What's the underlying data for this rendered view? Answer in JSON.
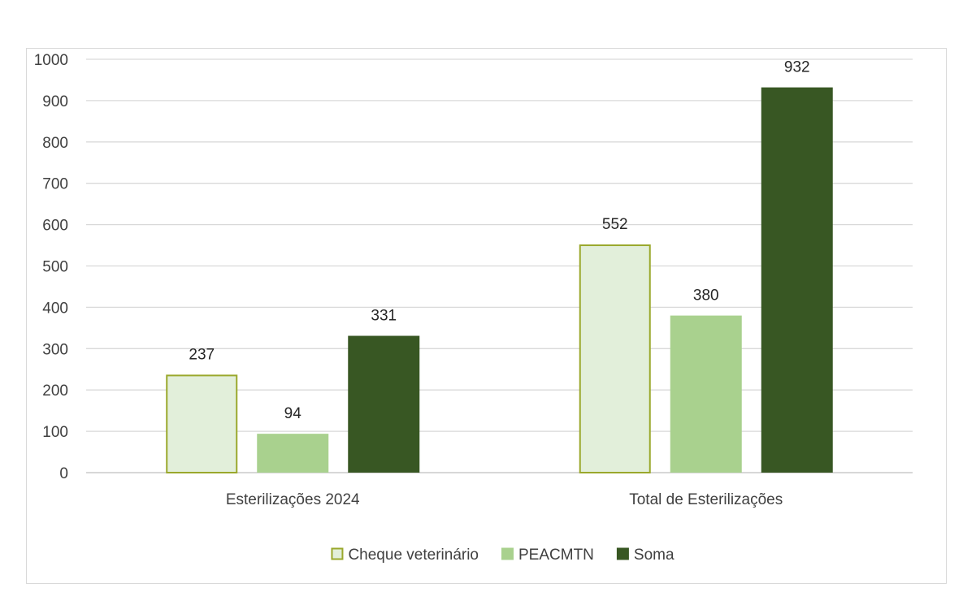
{
  "chart_data": {
    "type": "bar",
    "title": "",
    "xlabel": "",
    "ylabel": "",
    "categories": [
      "Esterilizações 2024",
      "Total de Esterilizações"
    ],
    "series": [
      {
        "name": "Cheque veterinário",
        "values": [
          237,
          552
        ],
        "fill": "#e2efda",
        "stroke": "#9aa82c"
      },
      {
        "name": "PEACMTN",
        "values": [
          94,
          380
        ],
        "fill": "#a9d18e",
        "stroke": "none"
      },
      {
        "name": "Soma",
        "values": [
          331,
          932
        ],
        "fill": "#385723",
        "stroke": "none"
      }
    ],
    "ylim": [
      0,
      1000
    ],
    "yticks": [
      0,
      100,
      200,
      300,
      400,
      500,
      600,
      700,
      800,
      900,
      1000
    ],
    "grid": true,
    "legend_position": "bottom",
    "data_labels": true
  }
}
